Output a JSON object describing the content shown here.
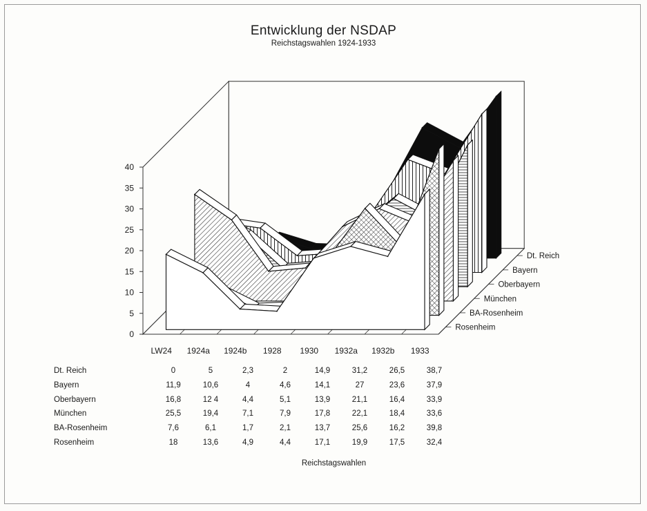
{
  "chart_data": {
    "type": "area",
    "variant": "3d-stacked-ribbon",
    "title": "Entwicklung der NSDAP",
    "subtitle": "Reichstagswahlen 1924-1933",
    "xlabel": "Reichstagswahlen",
    "ylabel": "",
    "ylim": [
      0,
      40
    ],
    "yticks": [
      "0",
      "5",
      "10",
      "15",
      "20",
      "25",
      "30",
      "35",
      "40"
    ],
    "categories": [
      "LW24",
      "1924a",
      "1924b",
      "1928",
      "1930",
      "1932a",
      "1932b",
      "1933"
    ],
    "grid": false,
    "legend": "depth-axis-right",
    "series": [
      {
        "name": "Dt. Reich",
        "values": [
          0,
          5,
          2.3,
          2,
          14.9,
          31.2,
          26.5,
          38.7
        ],
        "labels": [
          "0",
          "5",
          "2,3",
          "2",
          "14,9",
          "31,2",
          "26,5",
          "38,7"
        ],
        "fill": "solid-black"
      },
      {
        "name": "Bayern",
        "values": [
          11.9,
          10.6,
          4,
          4.6,
          14.1,
          27,
          23.6,
          37.9
        ],
        "labels": [
          "11,9",
          "10,6",
          "4",
          "4,6",
          "14,1",
          "27",
          "23,6",
          "37,9"
        ],
        "fill": "vertical-lines"
      },
      {
        "name": "Oberbayern",
        "values": [
          16.8,
          12.4,
          4.4,
          5.1,
          13.9,
          21.1,
          16.4,
          33.9
        ],
        "labels": [
          "16,8",
          "12 4",
          "4,4",
          "5,1",
          "13,9",
          "21,1",
          "16,4",
          "33,9"
        ],
        "fill": "horizontal-lines"
      },
      {
        "name": "München",
        "values": [
          25.5,
          19.4,
          7.1,
          7.9,
          17.8,
          22.1,
          18.4,
          33.6
        ],
        "labels": [
          "25,5",
          "19,4",
          "7,1",
          "7,9",
          "17,8",
          "22,1",
          "18,4",
          "33,6"
        ],
        "fill": "diagonal-hatch"
      },
      {
        "name": "BA-Rosenheim",
        "values": [
          7.6,
          6.1,
          1.7,
          2.1,
          13.7,
          25.6,
          16.2,
          39.8
        ],
        "labels": [
          "7,6",
          "6,1",
          "1,7",
          "2,1",
          "13,7",
          "25,6",
          "16,2",
          "39,8"
        ],
        "fill": "cross-hatch"
      },
      {
        "name": "Rosenheim",
        "values": [
          18,
          13.6,
          4.9,
          4.4,
          17.1,
          19.9,
          17.5,
          32.4
        ],
        "labels": [
          "18",
          "13,6",
          "4,9",
          "4,4",
          "17,1",
          "19,9",
          "17,5",
          "32,4"
        ],
        "fill": "white"
      }
    ]
  }
}
